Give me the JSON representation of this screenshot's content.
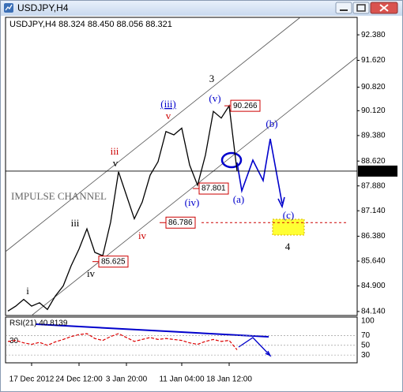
{
  "window": {
    "title": "USDJPY,H4"
  },
  "chart_data": {
    "type": "line",
    "header": "USDJPY,H4  88.324 88.450 88.056 88.321",
    "categories": [
      null,
      null,
      null,
      "17 Dec 2012",
      null,
      null,
      null,
      null,
      null,
      "24 Dec 12:00",
      null,
      null,
      null,
      null,
      null,
      "3 Jan 20:00",
      null,
      null,
      null,
      null,
      null,
      null,
      "11 Jan 04:00",
      null,
      null,
      null,
      null,
      null,
      "18 Jan 12:00",
      null
    ],
    "values": [
      84.15,
      84.3,
      84.5,
      84.3,
      84.4,
      84.2,
      84.6,
      84.9,
      85.5,
      86.0,
      86.6,
      85.9,
      85.8,
      86.8,
      88.3,
      87.6,
      86.9,
      87.4,
      88.2,
      88.6,
      89.5,
      89.4,
      89.6,
      88.5,
      87.9,
      88.8,
      90.1,
      89.9,
      90.266,
      88.321
    ],
    "color": "#000000",
    "ylim": [
      84.02,
      92.9
    ],
    "yticks": [
      {
        "value": 92.38,
        "label": "92.380"
      },
      {
        "value": 91.62,
        "label": "91.620"
      },
      {
        "value": 90.82,
        "label": "90.820"
      },
      {
        "value": 90.12,
        "label": "90.120"
      },
      {
        "value": 89.38,
        "label": "89.380"
      },
      {
        "value": 88.62,
        "label": "88.620"
      },
      {
        "value": 87.88,
        "label": "87.880"
      },
      {
        "value": 87.14,
        "label": "87.140"
      },
      {
        "value": 86.38,
        "label": "86.380"
      },
      {
        "value": 85.64,
        "label": "85.640"
      },
      {
        "value": 84.9,
        "label": "84.900"
      },
      {
        "value": 84.14,
        "label": "84.140"
      }
    ],
    "current_price": 88.321,
    "price_labels": [
      90.266,
      87.801,
      86.786,
      85.625
    ],
    "wave_labels": [
      "i",
      "iii",
      "iv",
      "v",
      "iii",
      "iv",
      "v",
      "(iii)",
      "(iv)",
      "(v)",
      "3",
      "(a)",
      "(b)",
      "(c)",
      "4"
    ],
    "channel_label": "IMPULSE CHANNEL",
    "rsi": {
      "title": "RSI(21) 40.8139",
      "values": [
        58,
        60,
        55,
        52,
        56,
        50,
        57,
        62,
        68,
        72,
        74,
        64,
        60,
        68,
        74,
        66,
        58,
        62,
        66,
        62,
        64,
        62,
        60,
        55,
        52,
        58,
        62,
        58,
        60,
        40.8139
      ],
      "color": "#dd0000",
      "ylim": [
        14,
        108
      ],
      "yticks": [
        100,
        70,
        50,
        30
      ]
    }
  }
}
